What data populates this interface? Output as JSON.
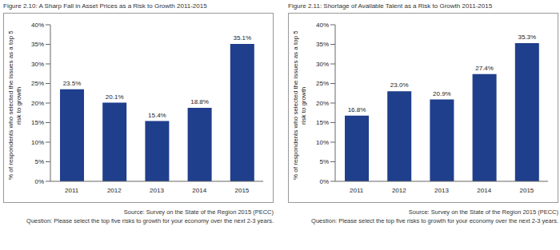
{
  "chart_data": [
    {
      "type": "bar",
      "title": "Figure 2.10: A Sharp Fall in Asset Prices as a Risk to Growth 2011-2015",
      "y_label": "% of respondents who selected the issues as a top 5 risk to growth",
      "categories": [
        "2011",
        "2012",
        "2013",
        "2014",
        "2015"
      ],
      "values": [
        23.5,
        20.1,
        15.4,
        18.8,
        35.1
      ],
      "value_labels": [
        "23.5%",
        "20.1%",
        "15.4%",
        "18.8%",
        "35.1%"
      ],
      "data_labels": true,
      "color": "#1f3e8c",
      "ylim": [
        0,
        40
      ],
      "yticks": [
        {
          "value": 0,
          "label": "0%"
        },
        {
          "value": 5,
          "label": "5%"
        },
        {
          "value": 10,
          "label": "10%"
        },
        {
          "value": 15,
          "label": "15%"
        },
        {
          "value": 20,
          "label": "20%"
        },
        {
          "value": 25,
          "label": "25%"
        },
        {
          "value": 30,
          "label": "30%"
        },
        {
          "value": 35,
          "label": "35%"
        },
        {
          "value": 40,
          "label": "40%"
        }
      ],
      "grid": false,
      "annotations": [
        "Source: Survey on the State of the Region 2015 (PECC)",
        "Question: Please select the top five risks to growth for your economy over the next 2-3 years."
      ]
    },
    {
      "type": "bar",
      "title": "Figure 2.11: Shortage of Available Talent as a Risk to Growth 2011-2015",
      "y_label": "% of respondents who selected the issues as a top 5 risk to growth",
      "categories": [
        "2011",
        "2012",
        "2013",
        "2014",
        "2015"
      ],
      "values": [
        16.8,
        23.0,
        20.9,
        27.4,
        35.3
      ],
      "value_labels": [
        "16.8%",
        "23.0%",
        "20.9%",
        "27.4%",
        "35.3%"
      ],
      "data_labels": true,
      "color": "#1f3e8c",
      "ylim": [
        0,
        40
      ],
      "yticks": [
        {
          "value": 0,
          "label": "0%"
        },
        {
          "value": 5,
          "label": "5%"
        },
        {
          "value": 10,
          "label": "10%"
        },
        {
          "value": 15,
          "label": "15%"
        },
        {
          "value": 20,
          "label": "20%"
        },
        {
          "value": 25,
          "label": "25%"
        },
        {
          "value": 30,
          "label": "30%"
        },
        {
          "value": 35,
          "label": "35%"
        },
        {
          "value": 40,
          "label": "40%"
        }
      ],
      "grid": false,
      "annotations": [
        "Source: Survey on the State of the Region 2015 (PECC)",
        "Question: Please select the top five risks to growth for your economy over the next 2-3 years."
      ]
    }
  ]
}
